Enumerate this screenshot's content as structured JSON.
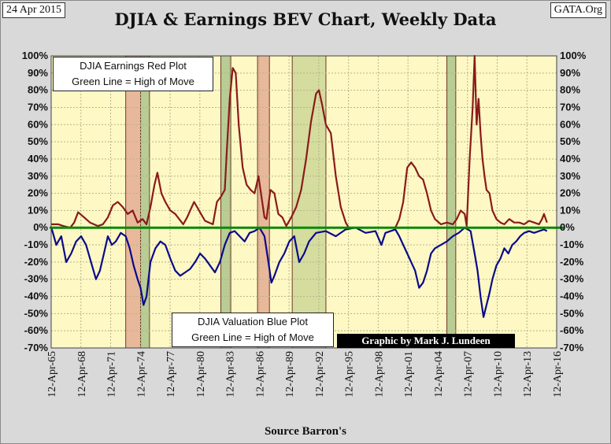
{
  "header": {
    "date": "24 Apr 2015",
    "org": "GATA.Org",
    "credit": "Graphic by Mark J. Lundeen"
  },
  "legend": {
    "red_line1": "DJIA Earnings Red Plot",
    "red_line2": "Green Line = High of Move",
    "blue_line1": "DJIA Valuation Blue Plot",
    "blue_line2": "Green Line = High of Move"
  },
  "chart_data": {
    "type": "line",
    "title": "DJIA & Earnings BEV Chart, Weekly Data",
    "xlabel": "Source Barron's",
    "ylabel": "",
    "xlim": [
      1965.28,
      2016.28
    ],
    "ylim": [
      -70,
      100
    ],
    "y_ticks": [
      100,
      90,
      80,
      70,
      60,
      50,
      40,
      30,
      20,
      10,
      0,
      -10,
      -20,
      -30,
      -40,
      -50,
      -60,
      -70
    ],
    "y_tick_labels": [
      "100%",
      "90%",
      "80%",
      "70%",
      "60%",
      "50%",
      "40%",
      "30%",
      "20%",
      "10%",
      "0%",
      "-10%",
      "-20%",
      "-30%",
      "-40%",
      "-50%",
      "-60%",
      "-70%"
    ],
    "x_ticks": [
      1965.28,
      1968.28,
      1971.28,
      1974.28,
      1977.28,
      1980.28,
      1983.28,
      1986.28,
      1989.28,
      1992.28,
      1995.28,
      1998.28,
      2001.28,
      2004.28,
      2007.28,
      2010.28,
      2013.28,
      2016.28
    ],
    "x_tick_labels": [
      "12-Apr-65",
      "12-Apr-68",
      "12-Apr-71",
      "12-Apr-74",
      "12-Apr-77",
      "12-Apr-80",
      "12-Apr-83",
      "12-Apr-86",
      "12-Apr-89",
      "12-Apr-92",
      "12-Apr-95",
      "12-Apr-98",
      "12-Apr-01",
      "12-Apr-04",
      "12-Apr-07",
      "12-Apr-10",
      "12-Apr-13",
      "12-Apr-16"
    ],
    "reference_line": {
      "name": "High of Move",
      "value": 0,
      "color": "#0a8a0a"
    },
    "shaded_regions": [
      {
        "from": 1972.8,
        "to": 1974.3,
        "color": "#e8b89a"
      },
      {
        "from": 1974.3,
        "to": 1975.2,
        "color": "#b8cc94"
      },
      {
        "from": 1982.4,
        "to": 1983.4,
        "color": "#b8cc94"
      },
      {
        "from": 1986.1,
        "to": 1987.3,
        "color": "#e8b89a"
      },
      {
        "from": 1989.6,
        "to": 1993.0,
        "color": "#d4dc9e"
      },
      {
        "from": 2005.2,
        "to": 2006.1,
        "color": "#b8cc94"
      }
    ],
    "series": [
      {
        "name": "DJIA Earnings (Red Plot)",
        "color": "#8b1a1a",
        "x": [
          1965.3,
          1966.0,
          1966.5,
          1967.2,
          1967.6,
          1968.0,
          1968.6,
          1969.2,
          1970.0,
          1970.5,
          1971.0,
          1971.5,
          1972.0,
          1972.5,
          1973.0,
          1973.5,
          1974.0,
          1974.5,
          1974.9,
          1975.3,
          1975.7,
          1976.0,
          1976.4,
          1976.8,
          1977.3,
          1977.8,
          1978.2,
          1978.6,
          1979.0,
          1979.3,
          1979.7,
          1980.0,
          1980.4,
          1980.8,
          1981.2,
          1981.6,
          1982.0,
          1982.4,
          1982.8,
          1983.0,
          1983.3,
          1983.6,
          1983.9,
          1984.2,
          1984.6,
          1985.0,
          1985.4,
          1985.8,
          1986.2,
          1986.5,
          1986.8,
          1987.0,
          1987.4,
          1987.8,
          1988.2,
          1988.6,
          1989.0,
          1989.5,
          1990.0,
          1990.5,
          1991.0,
          1991.5,
          1992.0,
          1992.3,
          1992.6,
          1993.0,
          1993.5,
          1994.0,
          1994.5,
          1995.0,
          1995.3,
          1996.0,
          1997.0,
          1998.0,
          1999.0,
          2000.0,
          2000.4,
          2000.8,
          2001.2,
          2001.6,
          2002.0,
          2002.4,
          2002.8,
          2003.2,
          2003.6,
          2004.0,
          2004.6,
          2005.2,
          2005.8,
          2006.2,
          2006.6,
          2007.0,
          2007.2,
          2007.5,
          2007.8,
          2008.0,
          2008.2,
          2008.4,
          2008.6,
          2008.8,
          2009.0,
          2009.2,
          2009.5,
          2009.8,
          2010.2,
          2010.6,
          2011.0,
          2011.5,
          2012.0,
          2012.5,
          2013.0,
          2013.5,
          2014.0,
          2014.5,
          2014.8,
          2015.0,
          2015.3
        ],
        "values": [
          2,
          2,
          1,
          0,
          3,
          9,
          6,
          3,
          1,
          2,
          6,
          13,
          15,
          12,
          8,
          10,
          3,
          5,
          2,
          12,
          25,
          32,
          20,
          15,
          10,
          8,
          5,
          2,
          6,
          10,
          15,
          12,
          8,
          4,
          3,
          2,
          15,
          18,
          22,
          45,
          75,
          93,
          90,
          60,
          35,
          25,
          22,
          20,
          30,
          18,
          6,
          5,
          22,
          20,
          8,
          6,
          1,
          6,
          12,
          22,
          40,
          62,
          78,
          80,
          72,
          60,
          55,
          30,
          12,
          3,
          0,
          0,
          0,
          0,
          0,
          0,
          5,
          15,
          35,
          38,
          35,
          30,
          28,
          20,
          10,
          5,
          2,
          3,
          2,
          5,
          10,
          8,
          1,
          40,
          70,
          100,
          60,
          75,
          55,
          40,
          30,
          22,
          20,
          10,
          5,
          3,
          2,
          5,
          3,
          3,
          2,
          4,
          3,
          2,
          5,
          8,
          3
        ]
      },
      {
        "name": "DJIA Valuation (Blue Plot)",
        "color": "#0a0a8a",
        "x": [
          1965.3,
          1965.8,
          1966.3,
          1966.8,
          1967.3,
          1967.8,
          1968.3,
          1968.8,
          1969.3,
          1969.8,
          1970.2,
          1970.6,
          1971.0,
          1971.4,
          1971.8,
          1972.3,
          1972.8,
          1973.2,
          1973.6,
          1974.0,
          1974.3,
          1974.6,
          1974.9,
          1975.3,
          1975.8,
          1976.3,
          1976.8,
          1977.3,
          1977.8,
          1978.3,
          1978.8,
          1979.3,
          1979.8,
          1980.3,
          1980.8,
          1981.3,
          1981.8,
          1982.3,
          1982.8,
          1983.3,
          1983.8,
          1984.3,
          1984.8,
          1985.3,
          1985.8,
          1986.3,
          1986.8,
          1987.2,
          1987.5,
          1987.8,
          1988.3,
          1988.8,
          1989.3,
          1989.8,
          1990.3,
          1990.8,
          1991.3,
          1992.0,
          1993.0,
          1994.0,
          1995.0,
          1996.0,
          1997.0,
          1998.0,
          1998.6,
          1999.0,
          2000.0,
          2000.4,
          2000.8,
          2001.2,
          2001.6,
          2002.0,
          2002.4,
          2002.8,
          2003.2,
          2003.6,
          2004.0,
          2004.6,
          2005.2,
          2005.8,
          2006.4,
          2007.0,
          2007.6,
          2008.0,
          2008.3,
          2008.6,
          2008.9,
          2009.2,
          2009.5,
          2009.8,
          2010.2,
          2010.6,
          2011.0,
          2011.4,
          2011.8,
          2012.2,
          2012.6,
          2013.0,
          2013.5,
          2014.0,
          2014.5,
          2015.0,
          2015.3
        ],
        "values": [
          0,
          -10,
          -5,
          -20,
          -15,
          -8,
          -5,
          -10,
          -20,
          -30,
          -25,
          -15,
          -5,
          -10,
          -8,
          -3,
          -5,
          -12,
          -22,
          -30,
          -35,
          -45,
          -40,
          -20,
          -12,
          -8,
          -10,
          -18,
          -25,
          -28,
          -26,
          -24,
          -20,
          -15,
          -18,
          -22,
          -26,
          -20,
          -10,
          -3,
          -2,
          -5,
          -8,
          -3,
          -2,
          0,
          -5,
          -20,
          -32,
          -28,
          -20,
          -15,
          -8,
          -5,
          -20,
          -15,
          -8,
          -3,
          -2,
          -5,
          -1,
          0,
          -3,
          -2,
          -10,
          -3,
          -1,
          -5,
          -10,
          -15,
          -20,
          -25,
          -35,
          -32,
          -25,
          -15,
          -12,
          -10,
          -8,
          -5,
          -3,
          0,
          -2,
          -15,
          -25,
          -40,
          -52,
          -45,
          -38,
          -30,
          -22,
          -18,
          -12,
          -15,
          -10,
          -8,
          -5,
          -3,
          -2,
          -3,
          -2,
          -1,
          -2
        ]
      }
    ]
  }
}
